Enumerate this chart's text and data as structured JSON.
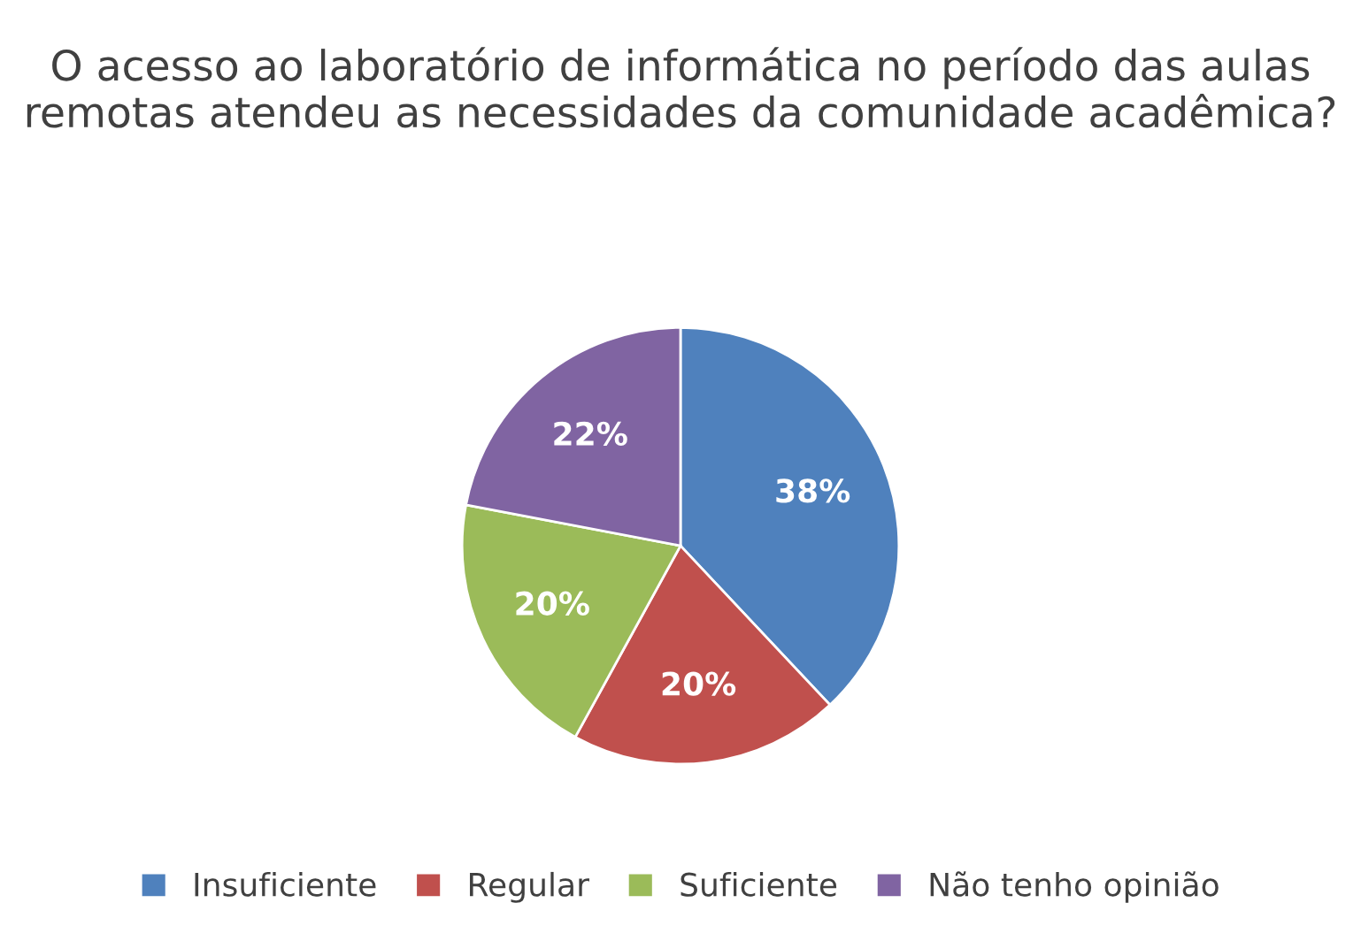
{
  "chart_data": {
    "type": "pie",
    "title": "O acesso ao laboratório de informática no período das aulas remotas atendeu as necessidades da comunidade acadêmica?",
    "categories": [
      "Insuficiente",
      "Regular",
      "Suficiente",
      "Não tenho opinião"
    ],
    "values": [
      38,
      20,
      20,
      22
    ],
    "colors": [
      "#4f81bd",
      "#c0504d",
      "#9bbb59",
      "#8064a2"
    ],
    "value_labels": [
      "38%",
      "20%",
      "20%",
      "22%"
    ],
    "legend": "bottom"
  }
}
